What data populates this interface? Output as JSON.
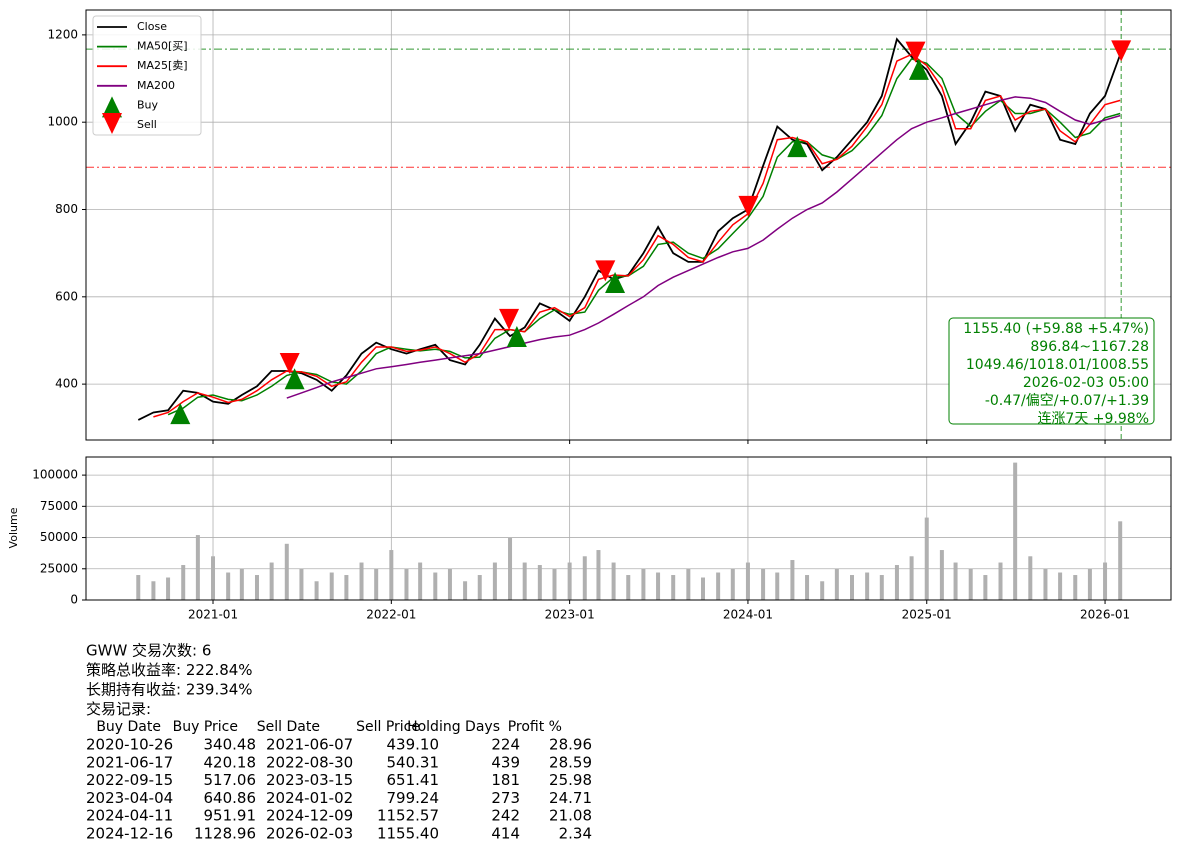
{
  "chart_data": [
    {
      "type": "line",
      "x": [
        "2020-08",
        "2020-09",
        "2020-10",
        "2020-11",
        "2020-12",
        "2021-01",
        "2021-02",
        "2021-03",
        "2021-04",
        "2021-05",
        "2021-06",
        "2021-07",
        "2021-08",
        "2021-09",
        "2021-10",
        "2021-11",
        "2021-12",
        "2022-01",
        "2022-02",
        "2022-03",
        "2022-04",
        "2022-05",
        "2022-06",
        "2022-07",
        "2022-08",
        "2022-09",
        "2022-10",
        "2022-11",
        "2022-12",
        "2023-01",
        "2023-02",
        "2023-03",
        "2023-04",
        "2023-05",
        "2023-06",
        "2023-07",
        "2023-08",
        "2023-09",
        "2023-10",
        "2023-11",
        "2023-12",
        "2024-01",
        "2024-02",
        "2024-03",
        "2024-04",
        "2024-05",
        "2024-06",
        "2024-07",
        "2024-08",
        "2024-09",
        "2024-10",
        "2024-11",
        "2024-12",
        "2025-01",
        "2025-02",
        "2025-03",
        "2025-04",
        "2025-05",
        "2025-06",
        "2025-07",
        "2025-08",
        "2025-09",
        "2025-10",
        "2025-11",
        "2025-12",
        "2026-01",
        "2026-02"
      ],
      "series": [
        {
          "name": "Close",
          "color": "#000000",
          "values": [
            318,
            335,
            340,
            385,
            380,
            360,
            355,
            375,
            395,
            430,
            430,
            425,
            410,
            385,
            420,
            470,
            495,
            480,
            470,
            480,
            490,
            455,
            445,
            490,
            550,
            510,
            530,
            585,
            570,
            545,
            600,
            660,
            640,
            650,
            700,
            760,
            700,
            680,
            680,
            750,
            780,
            800,
            900,
            990,
            960,
            950,
            890,
            920,
            960,
            1000,
            1060,
            1190,
            1150,
            1120,
            1060,
            950,
            1000,
            1070,
            1060,
            980,
            1040,
            1030,
            960,
            950,
            1020,
            1060,
            1155
          ]
        },
        {
          "name": "MA50[买]",
          "color": "#008000",
          "values": [
            null,
            null,
            330,
            345,
            370,
            375,
            365,
            362,
            375,
            395,
            420,
            428,
            422,
            405,
            400,
            430,
            470,
            485,
            480,
            476,
            480,
            475,
            460,
            462,
            505,
            525,
            520,
            550,
            570,
            560,
            565,
            615,
            645,
            648,
            670,
            720,
            725,
            700,
            688,
            710,
            745,
            780,
            830,
            920,
            955,
            955,
            925,
            915,
            935,
            970,
            1015,
            1100,
            1145,
            1135,
            1100,
            1020,
            990,
            1025,
            1050,
            1020,
            1020,
            1030,
            1000,
            965,
            975,
            1010,
            1020
          ]
        },
        {
          "name": "MA25[卖]",
          "color": "#ff0000",
          "values": [
            null,
            325,
            335,
            360,
            380,
            370,
            358,
            365,
            385,
            410,
            430,
            428,
            418,
            395,
            405,
            450,
            485,
            485,
            475,
            478,
            485,
            470,
            450,
            470,
            525,
            525,
            520,
            565,
            575,
            555,
            575,
            640,
            650,
            648,
            685,
            740,
            720,
            690,
            680,
            725,
            765,
            790,
            860,
            960,
            965,
            955,
            905,
            915,
            945,
            990,
            1040,
            1140,
            1155,
            1130,
            1080,
            985,
            985,
            1050,
            1060,
            1005,
            1025,
            1030,
            980,
            955,
            995,
            1040,
            1050
          ]
        },
        {
          "name": "MA200",
          "color": "#800080",
          "values": [
            null,
            null,
            null,
            null,
            null,
            null,
            null,
            null,
            null,
            null,
            368,
            380,
            392,
            405,
            415,
            425,
            435,
            440,
            445,
            450,
            455,
            460,
            465,
            470,
            478,
            486,
            494,
            502,
            508,
            512,
            525,
            540,
            560,
            580,
            600,
            626,
            645,
            660,
            675,
            690,
            703,
            711,
            730,
            755,
            780,
            800,
            815,
            840,
            870,
            900,
            930,
            960,
            985,
            1000,
            1010,
            1020,
            1030,
            1040,
            1050,
            1058,
            1055,
            1045,
            1025,
            1005,
            995,
            1005,
            1015
          ]
        },
        {
          "name": "Buy",
          "type": "scatter",
          "marker": "^",
          "color": "#008000",
          "x": [
            "2020-10-26",
            "2021-06-17",
            "2022-09-15",
            "2023-04-04",
            "2024-04-11",
            "2024-12-16"
          ],
          "values": [
            340.48,
            420.18,
            517.06,
            640.86,
            951.91,
            1128.96
          ]
        },
        {
          "name": "Sell",
          "type": "scatter",
          "marker": "v",
          "color": "#ff0000",
          "x": [
            "2021-06-07",
            "2022-08-30",
            "2023-03-15",
            "2024-01-02",
            "2024-12-09",
            "2026-02-03"
          ],
          "values": [
            439.1,
            540.31,
            651.41,
            799.24,
            1152.57,
            1155.4
          ]
        }
      ],
      "xlim": [
        "2020-04-16",
        "2026-05-16"
      ],
      "ylim": [
        272,
        1257
      ],
      "yticks": [
        400,
        600,
        800,
        1000,
        1200
      ],
      "grid": true,
      "legend": "upper left",
      "hlines": [
        {
          "value": 1167.28,
          "color": "#008000"
        },
        {
          "value": 896.84,
          "color": "#ff0000"
        }
      ],
      "vline": "2026-02-03",
      "annotation": {
        "color": "#008000",
        "lines": [
          "1155.40 (+59.88 +5.47%)",
          "896.84~1167.28",
          "1049.46/1018.01/1008.55",
          "2026-02-03 05:00",
          "-0.47/偏空/+0.07/+1.39",
          "连涨7天 +9.98%"
        ]
      }
    },
    {
      "type": "bar",
      "ylabel": "Volume",
      "x": [
        "2020-08",
        "2020-09",
        "2020-10",
        "2020-11",
        "2020-12",
        "2021-01",
        "2021-02",
        "2021-03",
        "2021-04",
        "2021-05",
        "2021-06",
        "2021-07",
        "2021-08",
        "2021-09",
        "2021-10",
        "2021-11",
        "2021-12",
        "2022-01",
        "2022-02",
        "2022-03",
        "2022-04",
        "2022-05",
        "2022-06",
        "2022-07",
        "2022-08",
        "2022-09",
        "2022-10",
        "2022-11",
        "2022-12",
        "2023-01",
        "2023-02",
        "2023-03",
        "2023-04",
        "2023-05",
        "2023-06",
        "2023-07",
        "2023-08",
        "2023-09",
        "2023-10",
        "2023-11",
        "2023-12",
        "2024-01",
        "2024-02",
        "2024-03",
        "2024-04",
        "2024-05",
        "2024-06",
        "2024-07",
        "2024-08",
        "2024-09",
        "2024-10",
        "2024-11",
        "2024-12",
        "2025-01",
        "2025-02",
        "2025-03",
        "2025-04",
        "2025-05",
        "2025-06",
        "2025-07",
        "2025-08",
        "2025-09",
        "2025-10",
        "2025-11",
        "2025-12",
        "2026-01",
        "2026-02"
      ],
      "values": [
        20000,
        15000,
        18000,
        28000,
        52000,
        35000,
        22000,
        25000,
        20000,
        30000,
        45000,
        25000,
        15000,
        22000,
        20000,
        30000,
        25000,
        40000,
        25000,
        30000,
        22000,
        25000,
        15000,
        20000,
        30000,
        50000,
        30000,
        28000,
        25000,
        30000,
        35000,
        40000,
        30000,
        20000,
        25000,
        22000,
        20000,
        25000,
        18000,
        22000,
        25000,
        30000,
        25000,
        22000,
        32000,
        20000,
        15000,
        25000,
        20000,
        22000,
        20000,
        28000,
        35000,
        66000,
        40000,
        30000,
        25000,
        20000,
        30000,
        110000,
        35000,
        25000,
        22000,
        20000,
        25000,
        30000,
        63000
      ],
      "color": "#b0b0b0",
      "xlim": [
        "2020-04-16",
        "2026-05-16"
      ],
      "xticks": [
        "2021-01",
        "2022-01",
        "2023-01",
        "2024-01",
        "2025-01",
        "2026-01"
      ],
      "ylim": [
        0,
        114500
      ],
      "yticks": [
        0,
        25000,
        50000,
        75000,
        100000
      ],
      "grid": true
    }
  ],
  "report": {
    "lines": [
      "GWW 交易次数: 6",
      "策略总收益率: 222.84%",
      "长期持有收益: 239.34%",
      "交易记录:"
    ],
    "table": {
      "columns": [
        "Buy Date",
        "Buy Price",
        "Sell Date",
        "Sell Price",
        "Holding Days",
        "Profit %"
      ],
      "rows": [
        [
          "2020-10-26",
          "340.48",
          "2021-06-07",
          "439.10",
          "224",
          "28.96"
        ],
        [
          "2021-06-17",
          "420.18",
          "2022-08-30",
          "540.31",
          "439",
          "28.59"
        ],
        [
          "2022-09-15",
          "517.06",
          "2023-03-15",
          "651.41",
          "181",
          "25.98"
        ],
        [
          "2023-04-04",
          "640.86",
          "2024-01-02",
          "799.24",
          "273",
          "24.71"
        ],
        [
          "2024-04-11",
          "951.91",
          "2024-12-09",
          "1152.57",
          "242",
          "21.08"
        ],
        [
          "2024-12-16",
          "1128.96",
          "2026-02-03",
          "1155.40",
          "414",
          "2.34"
        ]
      ]
    }
  }
}
